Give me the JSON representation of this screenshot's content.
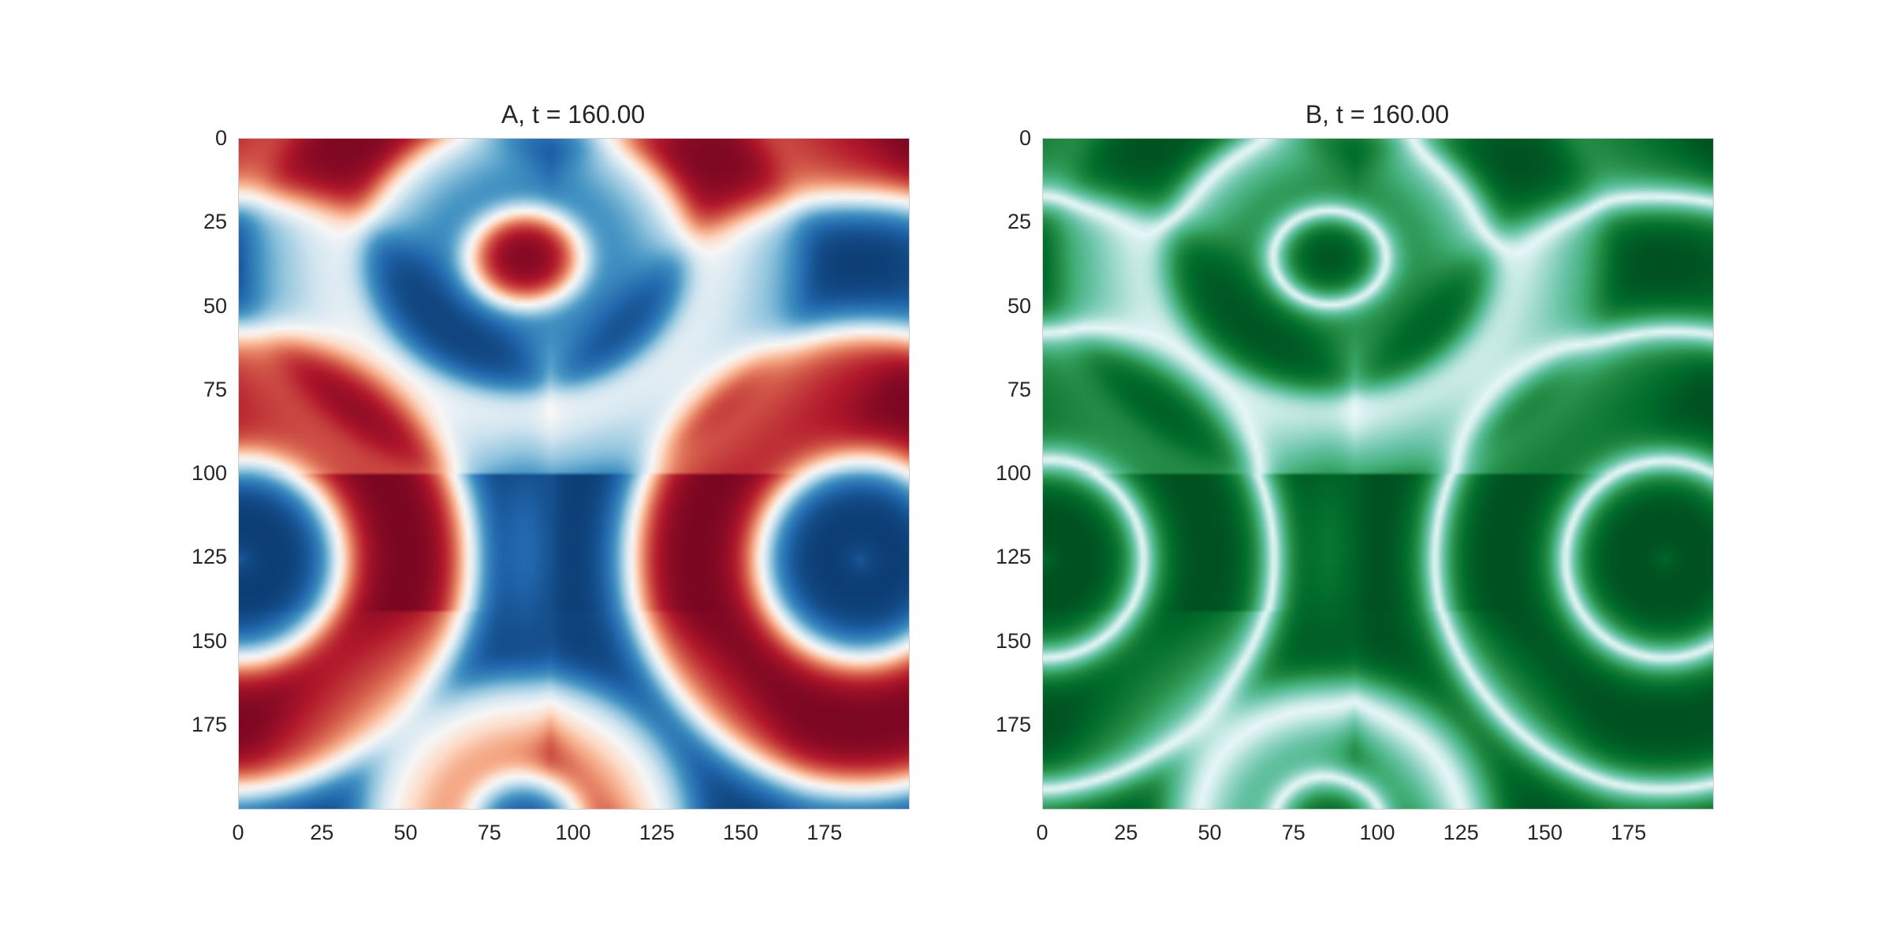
{
  "chart_data": [
    {
      "type": "heatmap",
      "title": "A, t = 160.00",
      "colormap": "RdBu",
      "colors": [
        "#67001f",
        "#b2182b",
        "#d6604d",
        "#f4a582",
        "#fddbc7",
        "#f7f7f7",
        "#d1e5f0",
        "#92c5de",
        "#4393c3",
        "#2166ac",
        "#053061"
      ],
      "grid": false,
      "xlim": [
        0,
        200
      ],
      "ylim": [
        200,
        0
      ],
      "x_ticks": [
        "0",
        "25",
        "50",
        "75",
        "100",
        "125",
        "150",
        "175"
      ],
      "y_ticks": [
        "0",
        "25",
        "50",
        "75",
        "100",
        "125",
        "150",
        "175"
      ],
      "features": {
        "ring_centers": [
          [
            0,
            125
          ],
          [
            185,
            125
          ]
        ],
        "ring_scale": 1.0,
        "pinch_region_x": [
          60,
          110
        ]
      }
    },
    {
      "type": "heatmap",
      "title": "B, t = 160.00",
      "colormap": "BuGn",
      "colors": [
        "#f7fcfd",
        "#e5f5f9",
        "#ccece6",
        "#99d8c9",
        "#66c2a4",
        "#41ae76",
        "#238b45",
        "#006d2c",
        "#00441b"
      ],
      "grid": false,
      "xlim": [
        0,
        200
      ],
      "ylim": [
        200,
        0
      ],
      "x_ticks": [
        "0",
        "25",
        "50",
        "75",
        "100",
        "125",
        "150",
        "175"
      ],
      "y_ticks": [
        "0",
        "25",
        "50",
        "75",
        "100",
        "125",
        "150",
        "175"
      ],
      "features": {
        "ring_centers": [
          [
            0,
            125
          ],
          [
            185,
            125
          ]
        ],
        "ring_scale": 1.0,
        "pinch_region_x": [
          60,
          110
        ]
      }
    }
  ]
}
